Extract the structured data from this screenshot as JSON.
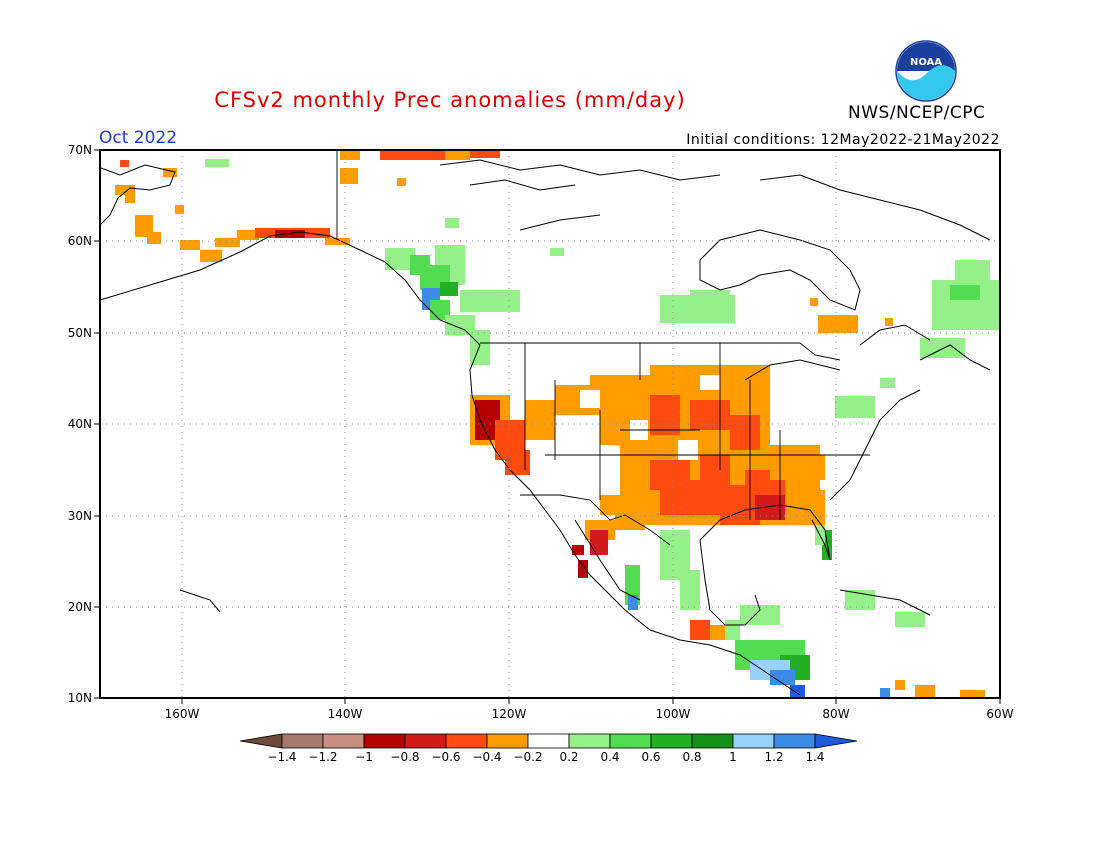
{
  "header": {
    "title": "CFSv2 monthly Prec anomalies (mm/day)",
    "month": "Oct 2022",
    "initial_conditions": "Initial conditions: 12May2022-21May2022",
    "agency": "NWS/NCEP/CPC",
    "logo_text": "NOAA"
  },
  "axes": {
    "lat_labels": [
      "70N",
      "60N",
      "50N",
      "40N",
      "30N",
      "20N",
      "10N"
    ],
    "lon_labels": [
      "160W",
      "140W",
      "120W",
      "100W",
      "80W",
      "60W"
    ]
  },
  "colorbar": {
    "labels": [
      "-1.4",
      "-1.2",
      "-1",
      "-0.8",
      "-0.6",
      "-0.4",
      "-0.2",
      "0.2",
      "0.4",
      "0.6",
      "0.8",
      "1",
      "1.2",
      "1.4"
    ],
    "colors": [
      "#6e4a3e",
      "#a57a6c",
      "#c88e80",
      "#b40000",
      "#d21a1a",
      "#ff4a10",
      "#ff9d00",
      "#ffffff",
      "#96f08a",
      "#52dc52",
      "#22b022",
      "#169016",
      "#96d2fa",
      "#3c8ce6",
      "#1e5adc"
    ]
  },
  "colors": {
    "title": "#e00000",
    "month": "#1e3cd0",
    "frame": "#000000"
  }
}
